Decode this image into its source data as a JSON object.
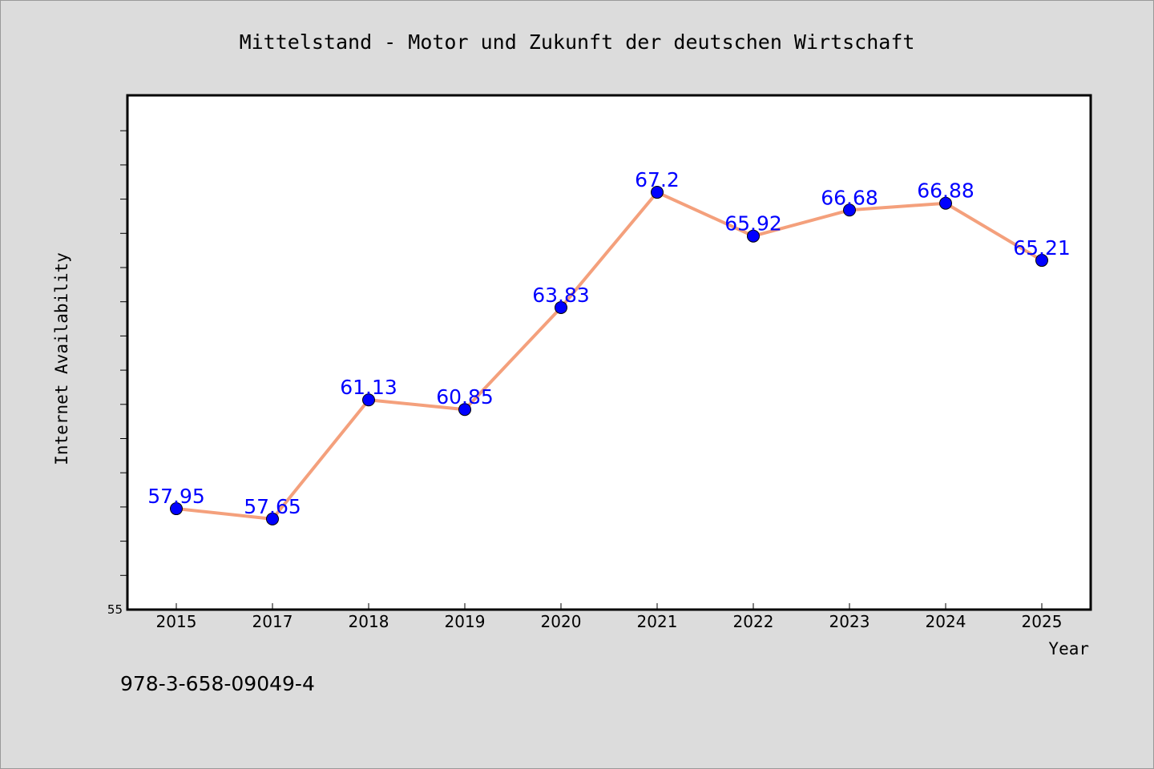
{
  "chart_data": {
    "type": "line",
    "title": "Mittelstand - Motor und Zukunft der deutschen Wirtschaft",
    "xlabel": "Year",
    "ylabel": "Internet Availability",
    "categories": [
      "2015",
      "2017",
      "2018",
      "2019",
      "2020",
      "2021",
      "2022",
      "2023",
      "2024",
      "2025"
    ],
    "series": [
      {
        "values": [
          57.95,
          57.65,
          61.13,
          60.85,
          63.83,
          67.2,
          65.92,
          66.68,
          66.88,
          65.21
        ],
        "labels": [
          "57.95",
          "57.65",
          "61.13",
          "60.85",
          "63.83",
          "67.2",
          "65.92",
          "66.68",
          "66.88",
          "65.21"
        ],
        "line_color": "#f4a07c",
        "marker_color": "#0000ff"
      }
    ],
    "ylim": [
      55,
      70
    ],
    "ytick_labels": [
      "55"
    ],
    "grid": false,
    "label_color": "#0000ff"
  },
  "footer": {
    "isbn": "978-3-658-09049-4"
  }
}
